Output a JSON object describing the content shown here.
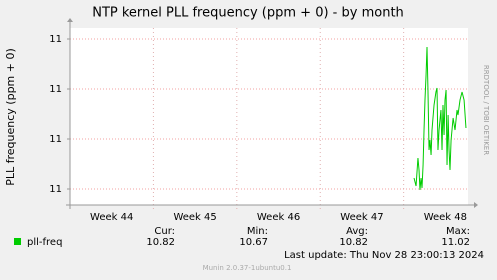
{
  "chart_data": {
    "type": "line",
    "title": "NTP kernel PLL frequency (ppm + 0) - by month",
    "y_label": "PLL frequency (ppm + 0)",
    "side_label": "RRDTOOL / TOBI OETIKER",
    "xlim": [
      0,
      33.4
    ],
    "xticks": [
      {
        "value": 3.5,
        "label": "Week 44"
      },
      {
        "value": 10.5,
        "label": "Week 45"
      },
      {
        "value": 17.5,
        "label": "Week 46"
      },
      {
        "value": 24.5,
        "label": "Week 47"
      },
      {
        "value": 31.5,
        "label": "Week 48"
      }
    ],
    "xgrid": [
      7,
      14,
      21,
      28
    ],
    "ylim": [
      10.668,
      11.022
    ],
    "yticks": [
      {
        "value": 10.7,
        "label": "11"
      },
      {
        "value": 10.8,
        "label": "11"
      },
      {
        "value": 10.9,
        "label": "11"
      },
      {
        "value": 11.0,
        "label": "11"
      }
    ],
    "grid": true,
    "x": [
      28.87,
      29.04,
      29.2,
      29.29,
      29.37,
      29.46,
      29.54,
      29.63,
      29.71,
      29.79,
      29.88,
      29.96,
      30.04,
      30.13,
      30.21,
      30.3,
      30.38,
      30.55,
      30.71,
      30.8,
      30.88,
      30.97,
      31.13,
      31.22,
      31.3,
      31.39,
      31.47,
      31.56,
      31.64,
      31.73,
      31.81,
      31.89,
      31.98,
      32.15,
      32.31,
      32.48,
      32.56,
      32.73,
      32.9,
      33.07,
      33.23
    ],
    "series": [
      {
        "name": "pll-freq",
        "color": "#00cc00",
        "values": [
          10.722,
          10.706,
          10.762,
          10.738,
          10.698,
          10.722,
          10.702,
          10.748,
          10.818,
          10.878,
          10.928,
          10.984,
          10.898,
          10.778,
          10.798,
          10.768,
          10.818,
          10.868,
          10.894,
          10.902,
          10.778,
          10.818,
          10.858,
          10.778,
          10.868,
          10.808,
          10.878,
          10.898,
          10.748,
          10.848,
          10.778,
          10.738,
          10.798,
          10.842,
          10.818,
          10.858,
          10.848,
          10.878,
          10.894,
          10.878,
          10.822
        ]
      }
    ],
    "stats": {
      "headers": [
        "Cur:",
        "Min:",
        "Avg:",
        "Max:"
      ],
      "values": [
        10.82,
        10.67,
        10.82,
        11.02
      ]
    },
    "last_update": "Last update: Thu Nov 28 23:00:13 2024",
    "footer": "Munin 2.0.37-1ubuntu0.1"
  }
}
